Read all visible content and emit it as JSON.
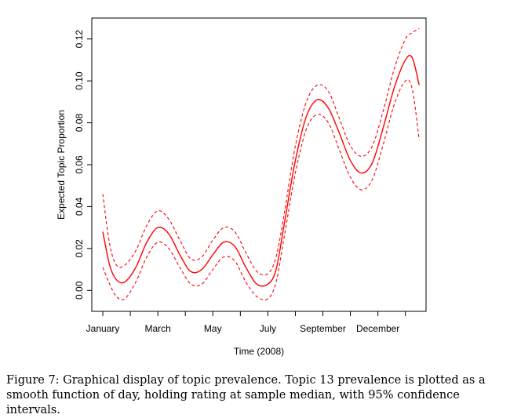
{
  "chart_data": {
    "type": "line",
    "xlabel": "Time (2008)",
    "ylabel": "Expected Topic Proportion",
    "ylim": [
      -0.01,
      0.13
    ],
    "yticks": [
      0.0,
      0.02,
      0.04,
      0.06,
      0.08,
      0.1,
      0.12
    ],
    "ytick_labels": [
      "0.00",
      "0.02",
      "0.04",
      "0.06",
      "0.08",
      "0.10",
      "0.12"
    ],
    "xlim": [
      0.6,
      12.75
    ],
    "xticks": [
      1,
      2,
      3,
      4,
      5,
      6,
      7,
      8,
      9,
      10,
      11,
      12
    ],
    "xtick_labels": [
      "January",
      "",
      "March",
      "",
      "May",
      "",
      "July",
      "",
      "September",
      "",
      "December",
      ""
    ],
    "color": "#ff0000",
    "grid": false,
    "series": [
      {
        "role": "estimate",
        "style": "solid",
        "x": [
          1.0,
          1.25,
          1.5,
          1.8,
          2.2,
          2.6,
          3.0,
          3.4,
          3.8,
          4.2,
          4.6,
          5.0,
          5.4,
          5.8,
          6.2,
          6.6,
          7.0,
          7.3,
          7.6,
          8.0,
          8.4,
          8.8,
          9.2,
          9.6,
          10.0,
          10.4,
          10.8,
          11.2,
          11.6,
          12.0,
          12.25,
          12.5
        ],
        "y": [
          0.028,
          0.012,
          0.005,
          0.004,
          0.011,
          0.023,
          0.03,
          0.027,
          0.017,
          0.009,
          0.01,
          0.017,
          0.023,
          0.021,
          0.011,
          0.003,
          0.003,
          0.01,
          0.032,
          0.062,
          0.083,
          0.091,
          0.087,
          0.075,
          0.062,
          0.056,
          0.061,
          0.078,
          0.097,
          0.11,
          0.111,
          0.098
        ]
      },
      {
        "role": "upper 95% CI",
        "style": "dashed",
        "x": [
          1.0,
          1.25,
          1.5,
          1.8,
          2.2,
          2.6,
          3.0,
          3.4,
          3.8,
          4.2,
          4.6,
          5.0,
          5.4,
          5.8,
          6.2,
          6.6,
          7.0,
          7.3,
          7.6,
          8.0,
          8.4,
          8.8,
          9.2,
          9.6,
          10.0,
          10.4,
          10.8,
          11.2,
          11.6,
          12.0,
          12.25,
          12.5
        ],
        "y": [
          0.046,
          0.022,
          0.012,
          0.012,
          0.019,
          0.031,
          0.038,
          0.034,
          0.024,
          0.015,
          0.016,
          0.024,
          0.03,
          0.028,
          0.018,
          0.009,
          0.008,
          0.016,
          0.037,
          0.069,
          0.09,
          0.098,
          0.095,
          0.082,
          0.069,
          0.064,
          0.069,
          0.086,
          0.106,
          0.12,
          0.123,
          0.125
        ]
      },
      {
        "role": "lower 95% CI",
        "style": "dashed",
        "x": [
          1.0,
          1.25,
          1.5,
          1.8,
          2.2,
          2.6,
          3.0,
          3.4,
          3.8,
          4.2,
          4.6,
          5.0,
          5.4,
          5.8,
          6.2,
          6.6,
          7.0,
          7.3,
          7.6,
          8.0,
          8.4,
          8.8,
          9.2,
          9.6,
          10.0,
          10.4,
          10.8,
          11.2,
          11.6,
          12.0,
          12.25,
          12.5
        ],
        "y": [
          0.011,
          0.003,
          -0.003,
          -0.004,
          0.004,
          0.016,
          0.023,
          0.02,
          0.011,
          0.003,
          0.003,
          0.01,
          0.016,
          0.014,
          0.004,
          -0.003,
          -0.004,
          0.004,
          0.026,
          0.056,
          0.077,
          0.084,
          0.08,
          0.067,
          0.054,
          0.048,
          0.053,
          0.07,
          0.089,
          0.1,
          0.096,
          0.072
        ]
      }
    ]
  },
  "caption": "Figure 7: Graphical display of topic prevalence. Topic 13 prevalence is plotted as a smooth function of day, holding rating at sample median, with 95% confidence intervals."
}
